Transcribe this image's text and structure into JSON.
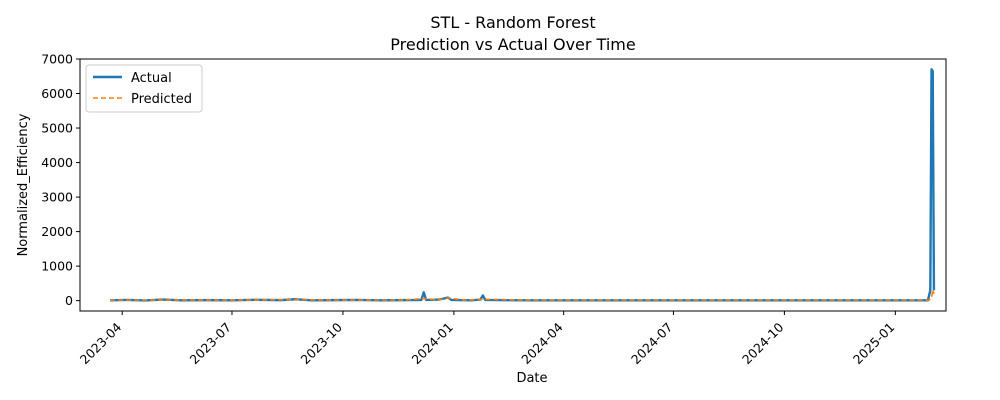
{
  "chart_data": {
    "type": "line",
    "title_line1": "STL - Random Forest",
    "title_line2": "Prediction vs Actual Over Time",
    "xlabel": "Date",
    "ylabel": "Normalized_Efficiency",
    "xlim": [
      "2023-02-25",
      "2025-02-12"
    ],
    "ylim": [
      -300,
      7000
    ],
    "x_ticks": [
      "2023-04",
      "2023-07",
      "2023-10",
      "2024-01",
      "2024-04",
      "2024-07",
      "2024-10",
      "2025-01"
    ],
    "y_ticks": [
      0,
      1000,
      2000,
      3000,
      4000,
      5000,
      6000,
      7000
    ],
    "grid": false,
    "legend_position": "upper-left",
    "series": [
      {
        "name": "Actual",
        "color": "#1f77b4",
        "style": "solid",
        "points": [
          [
            "2023-03-22",
            10
          ],
          [
            "2023-04-05",
            20
          ],
          [
            "2023-04-20",
            5
          ],
          [
            "2023-05-05",
            30
          ],
          [
            "2023-05-20",
            10
          ],
          [
            "2023-06-10",
            15
          ],
          [
            "2023-07-01",
            10
          ],
          [
            "2023-07-20",
            25
          ],
          [
            "2023-08-10",
            15
          ],
          [
            "2023-08-23",
            40
          ],
          [
            "2023-09-05",
            10
          ],
          [
            "2023-09-25",
            15
          ],
          [
            "2023-10-12",
            20
          ],
          [
            "2023-11-01",
            10
          ],
          [
            "2023-11-20",
            15
          ],
          [
            "2023-12-05",
            20
          ],
          [
            "2023-12-07",
            240
          ],
          [
            "2023-12-09",
            20
          ],
          [
            "2023-12-20",
            30
          ],
          [
            "2023-12-27",
            90
          ],
          [
            "2023-12-30",
            20
          ],
          [
            "2024-01-15",
            10
          ],
          [
            "2024-01-23",
            30
          ],
          [
            "2024-01-25",
            150
          ],
          [
            "2024-01-27",
            20
          ],
          [
            "2024-03-01",
            10
          ],
          [
            "2024-05-01",
            10
          ],
          [
            "2024-07-01",
            10
          ],
          [
            "2024-09-01",
            10
          ],
          [
            "2024-11-01",
            10
          ],
          [
            "2025-01-01",
            10
          ],
          [
            "2025-01-28",
            10
          ],
          [
            "2025-01-30",
            300
          ],
          [
            "2025-01-31",
            6700
          ],
          [
            "2025-02-01",
            6650
          ],
          [
            "2025-02-02",
            300
          ]
        ]
      },
      {
        "name": "Predicted",
        "color": "#ff7f0e",
        "style": "dashed",
        "points": [
          [
            "2023-03-22",
            15
          ],
          [
            "2023-04-20",
            15
          ],
          [
            "2023-05-20",
            20
          ],
          [
            "2023-06-20",
            15
          ],
          [
            "2023-07-20",
            20
          ],
          [
            "2023-08-23",
            30
          ],
          [
            "2023-09-25",
            15
          ],
          [
            "2023-10-25",
            15
          ],
          [
            "2023-11-20",
            15
          ],
          [
            "2023-12-07",
            60
          ],
          [
            "2023-12-20",
            20
          ],
          [
            "2023-12-27",
            80
          ],
          [
            "2024-01-10",
            15
          ],
          [
            "2024-01-25",
            40
          ],
          [
            "2024-03-01",
            15
          ],
          [
            "2024-05-01",
            15
          ],
          [
            "2024-07-01",
            15
          ],
          [
            "2024-09-01",
            15
          ],
          [
            "2024-11-01",
            15
          ],
          [
            "2025-01-01",
            15
          ],
          [
            "2025-01-29",
            15
          ],
          [
            "2025-01-31",
            80
          ],
          [
            "2025-02-01",
            320
          ],
          [
            "2025-02-02",
            200
          ]
        ]
      }
    ]
  }
}
